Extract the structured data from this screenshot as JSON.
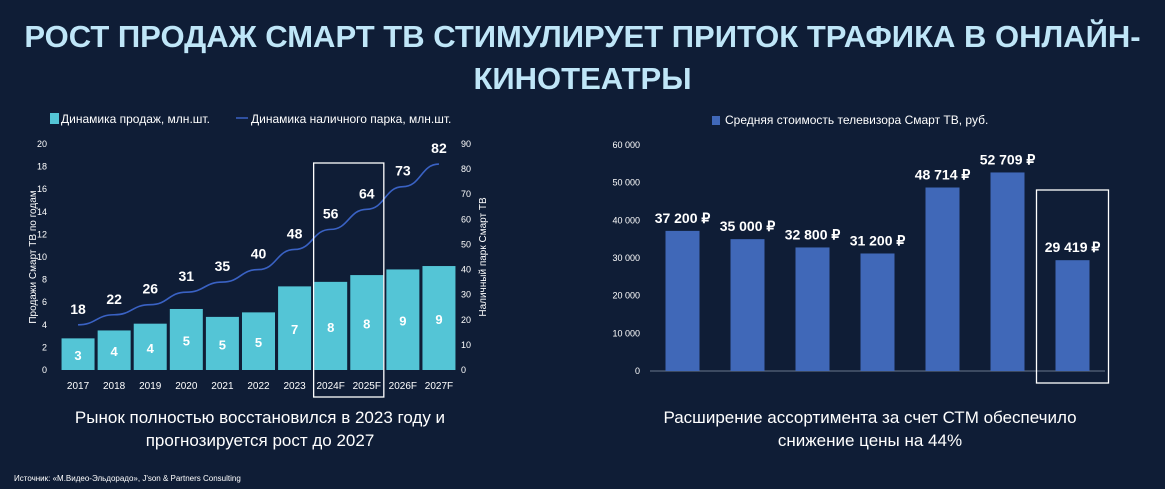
{
  "title_line1": "РОСТ ПРОДАЖ СМАРТ ТВ СТИМУЛИРУЕТ ПРИТОК ТРАФИКА В ОНЛАЙН-",
  "title_line2": "КИНОТЕАТРЫ",
  "colors": {
    "background": "#0f1d36",
    "title": "#bfe6f8",
    "bar_teal": "#54c5d6",
    "line_blue": "#3a62c4",
    "bar_blue": "#4068b8"
  },
  "chart_data": [
    {
      "type": "bar",
      "categories": [
        "2017",
        "2018",
        "2019",
        "2020",
        "2021",
        "2022",
        "2023",
        "2024F",
        "2025F",
        "2026F",
        "2027F"
      ],
      "series": [
        {
          "name": "Динамика продаж, млн.шт.",
          "type": "bar",
          "axis": "left",
          "values": [
            3,
            4,
            4,
            5,
            5,
            5,
            7,
            8,
            8,
            9,
            9
          ],
          "labels": [
            "3",
            "4",
            "4",
            "5",
            "5",
            "5",
            "7",
            "8",
            "8",
            "9",
            "9"
          ],
          "display_values": [
            2.8,
            3.5,
            4.1,
            5.4,
            4.7,
            5.1,
            7.4,
            7.8,
            8.4,
            8.9,
            9.2
          ]
        },
        {
          "name": "Динамика наличного парка, млн.шт.",
          "type": "line",
          "axis": "right",
          "values": [
            18,
            22,
            26,
            31,
            35,
            40,
            48,
            56,
            64,
            73,
            82
          ],
          "labels": [
            "18",
            "22",
            "26",
            "31",
            "35",
            "40",
            "48",
            "56",
            "64",
            "73",
            "82"
          ]
        }
      ],
      "ylabel_left": "Продажи Смарт ТВ по годам",
      "ylabel_right": "Наличный парк Смарт ТВ",
      "ylim_left": [
        0,
        20
      ],
      "yticks_left": [
        "0",
        "2",
        "4",
        "6",
        "8",
        "10",
        "12",
        "14",
        "16",
        "18",
        "20"
      ],
      "ylim_right": [
        0,
        90
      ],
      "yticks_right": [
        "0",
        "10",
        "20",
        "30",
        "40",
        "50",
        "60",
        "70",
        "80",
        "90"
      ],
      "legend": "top",
      "highlight": [
        "2024F",
        "2025F"
      ],
      "caption": "Рынок полностью восстановился в 2023 году и прогнозируется рост до 2027"
    },
    {
      "type": "bar",
      "categories": [
        "",
        "",
        "",
        "",
        "",
        "",
        ""
      ],
      "series": [
        {
          "name": "Средняя стоимость телевизора Смарт ТВ, руб.",
          "values": [
            37200,
            35000,
            32800,
            31200,
            48714,
            52709,
            29419
          ],
          "labels": [
            "37 200 ₽",
            "35 000 ₽",
            "32 800 ₽",
            "31 200 ₽",
            "48 714 ₽",
            "52 709 ₽",
            "29 419 ₽"
          ]
        }
      ],
      "ylim": [
        0,
        60000
      ],
      "yticks": [
        "0",
        "10 000",
        "20 000",
        "30 000",
        "40 000",
        "50 000",
        "60 000"
      ],
      "legend": "top",
      "highlight_index": 6,
      "caption": "Расширение ассортимента за счет СТМ обеспечило снижение цены на 44%"
    }
  ],
  "source": "Источник: «М.Видео-Эльдорадо», J'son & Partners Consulting"
}
